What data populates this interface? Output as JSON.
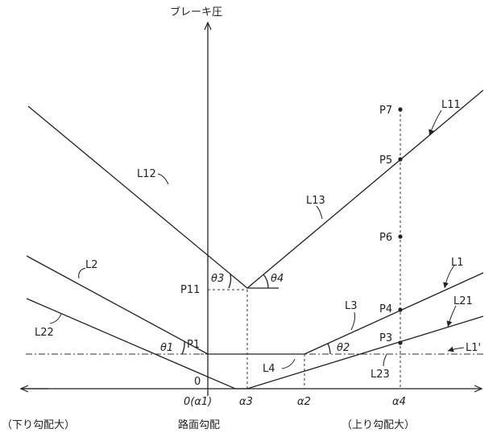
{
  "axis": {
    "y_title": "ブレーキ圧",
    "x_title": "路面勾配",
    "left_caption": "（下り勾配大）",
    "right_caption": "（上り勾配大）"
  },
  "ticks": {
    "zero_x": "0(α1)",
    "zero_y": "0",
    "alpha3": "α3",
    "alpha2": "α2",
    "alpha4": "α4"
  },
  "points": {
    "P7": "P7",
    "P5": "P5",
    "P6": "P6",
    "P4": "P4",
    "P3": "P3",
    "P1": "P1",
    "P11": "P11"
  },
  "lines": {
    "L11": "L11",
    "L12": "L12",
    "L13": "L13",
    "L1": "L1",
    "L2": "L2",
    "L3": "L3",
    "L21": "L21",
    "L22": "L22",
    "L4": "L4",
    "L23": "L23",
    "L1p": "L1'"
  },
  "angles": {
    "theta1": "θ1",
    "theta2": "θ2",
    "theta3": "θ3",
    "theta4": "θ4"
  }
}
